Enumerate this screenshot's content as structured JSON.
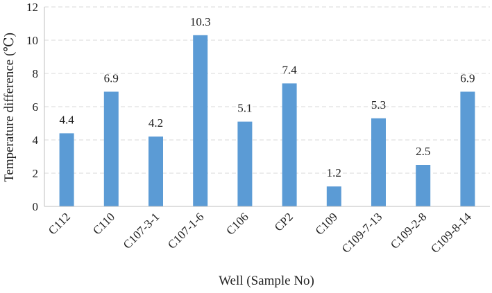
{
  "chart_data": {
    "type": "bar",
    "title": "",
    "xlabel": "Well (Sample No)",
    "ylabel": "Temperature difference (℃)",
    "categories": [
      "C112",
      "C110",
      "C107-3-1",
      "C107-1-6",
      "C106",
      "CP2",
      "C109",
      "C109-7-13",
      "C109-2-8",
      "C109-8-14"
    ],
    "series": [
      {
        "values": [
          4.4,
          6.9,
          4.2,
          10.3,
          5.1,
          7.4,
          1.2,
          5.3,
          2.5,
          6.9
        ],
        "data_labels": [
          "4.4",
          "6.9",
          "4.2",
          "10.3",
          "5.1",
          "7.4",
          "1.2",
          "5.3",
          "2.5",
          "6.9"
        ]
      }
    ],
    "ylim": [
      0,
      12
    ],
    "yticks": [
      "0",
      "2",
      "4",
      "6",
      "8",
      "10",
      "12"
    ],
    "grid": true,
    "legend": "none",
    "colors": {
      "bar": "#5b9bd5",
      "grid": "#d9d9d9",
      "axis": "#bfbfbf",
      "text": "#222222"
    }
  }
}
